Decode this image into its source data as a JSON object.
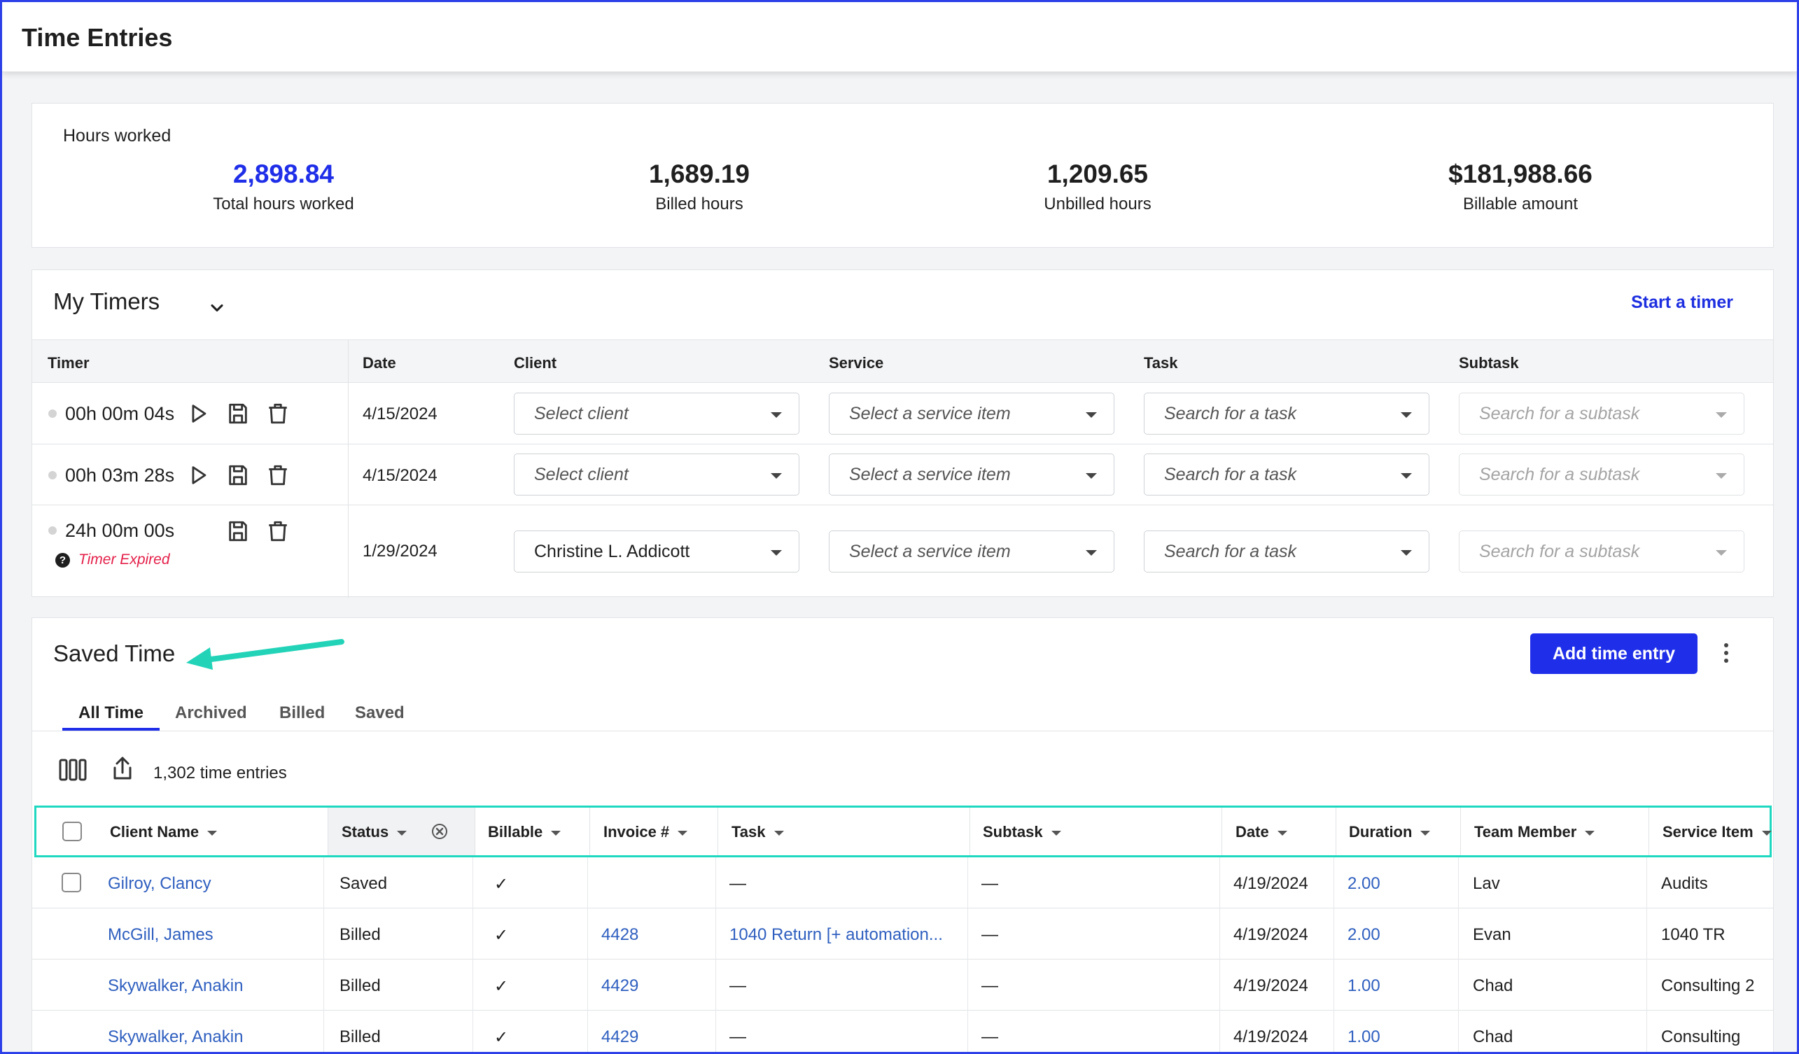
{
  "header": {
    "title": "Time Entries"
  },
  "hours": {
    "label": "Hours worked",
    "total": {
      "value": "2,898.84",
      "caption": "Total hours worked"
    },
    "billed": {
      "value": "1,689.19",
      "caption": "Billed hours"
    },
    "unbilled": {
      "value": "1,209.65",
      "caption": "Unbilled hours"
    },
    "amount": {
      "value": "$181,988.66",
      "caption": "Billable amount"
    }
  },
  "timers": {
    "title": "My Timers",
    "start_label": "Start a timer",
    "columns": {
      "timer": "Timer",
      "date": "Date",
      "client": "Client",
      "service": "Service",
      "task": "Task",
      "subtask": "Subtask"
    },
    "rows": [
      {
        "time": "00h 00m 04s",
        "date": "4/15/2024",
        "client": "Select client",
        "service": "Select a service item",
        "task": "Search for a task",
        "subtask": "Search for a subtask"
      },
      {
        "time": "00h 03m 28s",
        "date": "4/15/2024",
        "client": "Select client",
        "service": "Select a service item",
        "task": "Search for a task",
        "subtask": "Search for a subtask"
      },
      {
        "time": "24h 00m 00s",
        "date": "1/29/2024",
        "client": "Christine L. Addicott",
        "service": "Select a service item",
        "task": "Search for a task",
        "subtask": "Search for a subtask",
        "expired": "Timer Expired"
      }
    ]
  },
  "saved": {
    "title": "Saved Time",
    "add_label": "Add time entry",
    "tabs": [
      "All Time",
      "Archived",
      "Billed",
      "Saved"
    ],
    "count": "1,302 time entries",
    "columns": {
      "client": "Client Name",
      "status": "Status",
      "billable": "Billable",
      "invoice": "Invoice #",
      "task": "Task",
      "subtask": "Subtask",
      "date": "Date",
      "duration": "Duration",
      "member": "Team Member",
      "service": "Service Item"
    },
    "rows": [
      {
        "client": "Gilroy, Clancy",
        "status": "Saved",
        "billable": "✓",
        "invoice": "",
        "task": "—",
        "subtask": "—",
        "date": "4/19/2024",
        "duration": "2.00",
        "member": "Lav",
        "service": "Audits"
      },
      {
        "client": "McGill, James",
        "status": "Billed",
        "billable": "✓",
        "invoice": "4428",
        "task": "1040 Return [+ automation...",
        "subtask": "—",
        "date": "4/19/2024",
        "duration": "2.00",
        "member": "Evan",
        "service": "1040 TR"
      },
      {
        "client": "Skywalker, Anakin",
        "status": "Billed",
        "billable": "✓",
        "invoice": "4429",
        "task": "—",
        "subtask": "—",
        "date": "4/19/2024",
        "duration": "1.00",
        "member": "Chad",
        "service": "Consulting 2"
      },
      {
        "client": "Skywalker, Anakin",
        "status": "Billed",
        "billable": "✓",
        "invoice": "4429",
        "task": "—",
        "subtask": "—",
        "date": "4/19/2024",
        "duration": "1.00",
        "member": "Chad",
        "service": "Consulting"
      }
    ]
  },
  "colors": {
    "accent": "#1f2ee8",
    "link": "#2f5fbf",
    "highlight": "#1ed8c0",
    "expired": "#e4204a"
  }
}
